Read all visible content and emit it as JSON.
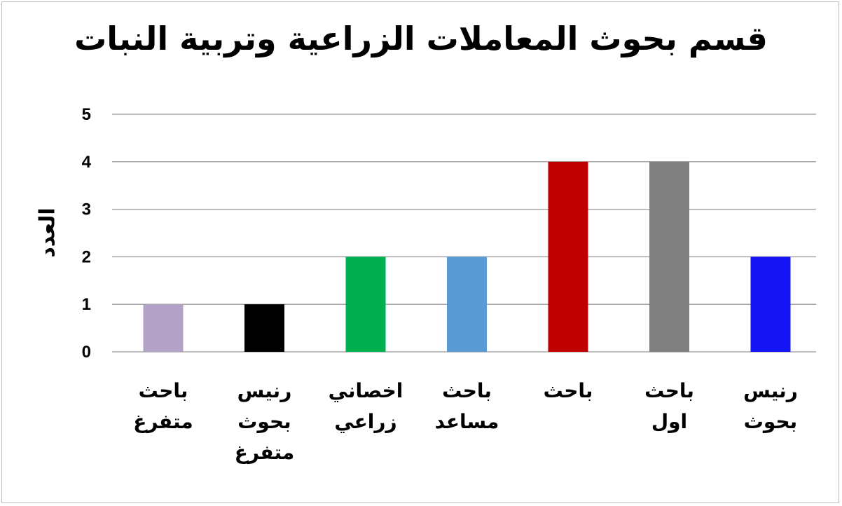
{
  "chart_data": {
    "type": "bar",
    "title": "قسم بحوث المعاملات الزراعية وتربية النبات",
    "xlabel": "",
    "ylabel": "العدد",
    "ylim": [
      0,
      5
    ],
    "yticks": [
      0,
      1,
      2,
      3,
      4,
      5
    ],
    "grid": true,
    "categories": [
      "باحث متفرغ",
      "رئيس بحوث متفرغ",
      "اخصائي زراعي",
      "باحث مساعد",
      "باحث",
      "باحث اول",
      "رئيس بحوث"
    ],
    "category_labels": [
      "باحث\nمتفرغ",
      "رنيس\nبحوث\nمتفرغ",
      "اخصاني\nزراعي",
      "باحث\nمساعد",
      "باحث",
      "باحث اول",
      "رنيس\nبحوث"
    ],
    "values": [
      1,
      1,
      2,
      2,
      4,
      4,
      2
    ],
    "colors": [
      "#b3a2c7",
      "#000000",
      "#00b050",
      "#5b9bd5",
      "#c00000",
      "#808080",
      "#1414f5"
    ]
  }
}
